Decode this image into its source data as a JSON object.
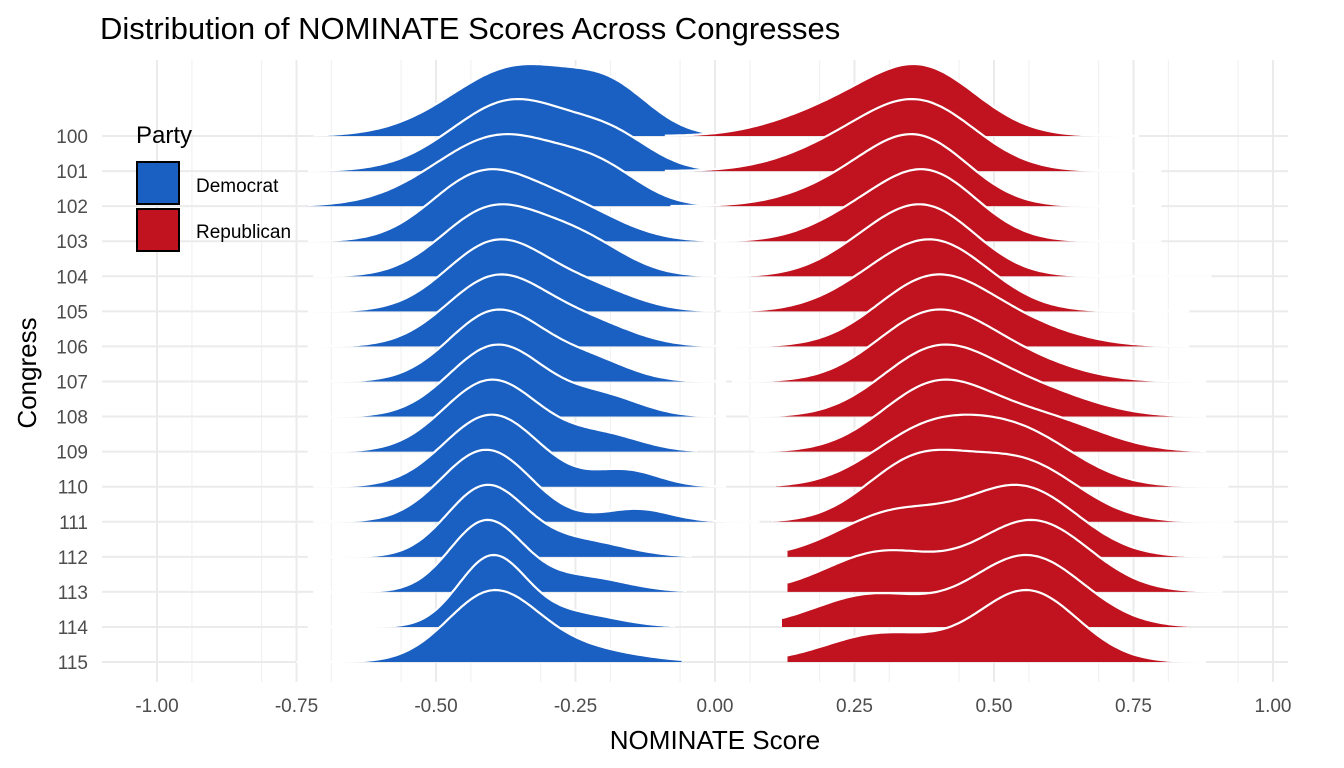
{
  "chart_data": {
    "type": "ridgeline",
    "title": "Distribution of NOMINATE Scores Across Congresses",
    "xlabel": "NOMINATE Score",
    "ylabel": "Congress",
    "xlim": [
      -1.0,
      1.0
    ],
    "x_ticks": [
      "-1.00",
      "-0.75",
      "-0.50",
      "-0.25",
      "0.00",
      "0.25",
      "0.50",
      "0.75",
      "1.00"
    ],
    "x_tick_values": [
      -1.0,
      -0.75,
      -0.5,
      -0.25,
      0.0,
      0.25,
      0.5,
      0.75,
      1.0
    ],
    "categories": [
      "100",
      "101",
      "102",
      "103",
      "104",
      "105",
      "106",
      "107",
      "108",
      "109",
      "110",
      "111",
      "112",
      "113",
      "114",
      "115"
    ],
    "grid": true,
    "legend": {
      "title": "Party",
      "position": "top-left",
      "entries": [
        {
          "name": "Democrat",
          "color": "#1a5fc2"
        },
        {
          "name": "Republican",
          "color": "#c0131f"
        }
      ]
    },
    "series": [
      {
        "name": "Democrat",
        "color": "#1a5fc2",
        "range": [
          [
            -0.72,
            -0.01
          ],
          [
            -0.73,
            0.0
          ],
          [
            -0.73,
            0.01
          ],
          [
            -0.73,
            0.0
          ],
          [
            -0.72,
            0.02
          ],
          [
            -0.73,
            0.0
          ],
          [
            -0.73,
            0.01
          ],
          [
            -0.73,
            0.02
          ],
          [
            -0.73,
            0.02
          ],
          [
            -0.73,
            -0.03
          ],
          [
            -0.72,
            0.02
          ],
          [
            -0.72,
            0.08
          ],
          [
            -0.73,
            -0.04
          ],
          [
            -0.72,
            -0.05
          ],
          [
            -0.73,
            -0.07
          ],
          [
            -0.75,
            -0.06
          ]
        ],
        "components": [
          [
            [
              -0.35,
              0.12,
              0.55
            ],
            [
              -0.18,
              0.07,
              0.25
            ]
          ],
          [
            [
              -0.36,
              0.11,
              0.55
            ],
            [
              -0.18,
              0.07,
              0.2
            ]
          ],
          [
            [
              -0.38,
              0.12,
              0.6
            ],
            [
              -0.2,
              0.07,
              0.2
            ]
          ],
          [
            [
              -0.42,
              0.09,
              0.6
            ],
            [
              -0.26,
              0.09,
              0.3
            ]
          ],
          [
            [
              -0.4,
              0.09,
              0.6
            ],
            [
              -0.24,
              0.08,
              0.3
            ]
          ],
          [
            [
              -0.39,
              0.09,
              0.7
            ],
            [
              -0.22,
              0.08,
              0.2
            ]
          ],
          [
            [
              -0.39,
              0.09,
              0.7
            ],
            [
              -0.22,
              0.08,
              0.2
            ]
          ],
          [
            [
              -0.39,
              0.085,
              0.75
            ],
            [
              -0.22,
              0.07,
              0.2
            ]
          ],
          [
            [
              -0.39,
              0.085,
              0.75
            ],
            [
              -0.2,
              0.07,
              0.2
            ]
          ],
          [
            [
              -0.4,
              0.085,
              0.8
            ],
            [
              -0.2,
              0.07,
              0.18
            ]
          ],
          [
            [
              -0.4,
              0.085,
              0.8
            ],
            [
              -0.16,
              0.06,
              0.18
            ]
          ],
          [
            [
              -0.41,
              0.08,
              0.85
            ],
            [
              -0.14,
              0.06,
              0.15
            ]
          ],
          [
            [
              -0.41,
              0.07,
              0.9
            ],
            [
              -0.24,
              0.08,
              0.2
            ]
          ],
          [
            [
              -0.41,
              0.065,
              0.95
            ],
            [
              -0.24,
              0.08,
              0.2
            ]
          ],
          [
            [
              -0.4,
              0.06,
              1.0
            ],
            [
              -0.26,
              0.08,
              0.2
            ]
          ],
          [
            [
              -0.4,
              0.08,
              1.0
            ],
            [
              -0.25,
              0.1,
              0.2
            ]
          ]
        ]
      },
      {
        "name": "Republican",
        "color": "#c0131f",
        "range": [
          [
            -0.09,
            0.76
          ],
          [
            -0.09,
            0.8
          ],
          [
            -0.08,
            0.8
          ],
          [
            -0.02,
            0.8
          ],
          [
            0.01,
            0.89
          ],
          [
            0.01,
            0.85
          ],
          [
            0.01,
            0.85
          ],
          [
            0.03,
            0.88
          ],
          [
            0.06,
            0.88
          ],
          [
            0.07,
            0.88
          ],
          [
            0.11,
            0.92
          ],
          [
            0.1,
            0.93
          ],
          [
            0.13,
            0.91
          ],
          [
            0.13,
            0.91
          ],
          [
            0.12,
            0.85
          ],
          [
            0.13,
            0.88
          ]
        ],
        "components": [
          [
            [
              0.37,
              0.1,
              0.8
            ],
            [
              0.2,
              0.1,
              0.25
            ]
          ],
          [
            [
              0.37,
              0.1,
              0.8
            ],
            [
              0.22,
              0.1,
              0.25
            ]
          ],
          [
            [
              0.37,
              0.09,
              0.8
            ],
            [
              0.25,
              0.1,
              0.3
            ]
          ],
          [
            [
              0.38,
              0.09,
              0.8
            ],
            [
              0.24,
              0.08,
              0.2
            ]
          ],
          [
            [
              0.38,
              0.09,
              0.8
            ],
            [
              0.26,
              0.08,
              0.2
            ]
          ],
          [
            [
              0.39,
              0.1,
              0.8
            ],
            [
              0.25,
              0.08,
              0.1
            ]
          ],
          [
            [
              0.39,
              0.1,
              0.8
            ],
            [
              0.55,
              0.1,
              0.2
            ]
          ],
          [
            [
              0.39,
              0.1,
              0.75
            ],
            [
              0.55,
              0.1,
              0.2
            ]
          ],
          [
            [
              0.4,
              0.1,
              0.75
            ],
            [
              0.58,
              0.1,
              0.25
            ]
          ],
          [
            [
              0.4,
              0.1,
              0.7
            ],
            [
              0.6,
              0.1,
              0.3
            ]
          ],
          [
            [
              0.38,
              0.1,
              0.6
            ],
            [
              0.55,
              0.1,
              0.55
            ]
          ],
          [
            [
              0.36,
              0.09,
              0.6
            ],
            [
              0.55,
              0.1,
              0.6
            ]
          ],
          [
            [
              0.32,
              0.1,
              0.5
            ],
            [
              0.55,
              0.1,
              0.8
            ]
          ],
          [
            [
              0.3,
              0.1,
              0.5
            ],
            [
              0.57,
              0.1,
              0.9
            ]
          ],
          [
            [
              0.28,
              0.1,
              0.45
            ],
            [
              0.56,
              0.1,
              1.0
            ]
          ],
          [
            [
              0.3,
              0.1,
              0.4
            ],
            [
              0.56,
              0.09,
              1.0
            ]
          ]
        ]
      }
    ]
  }
}
